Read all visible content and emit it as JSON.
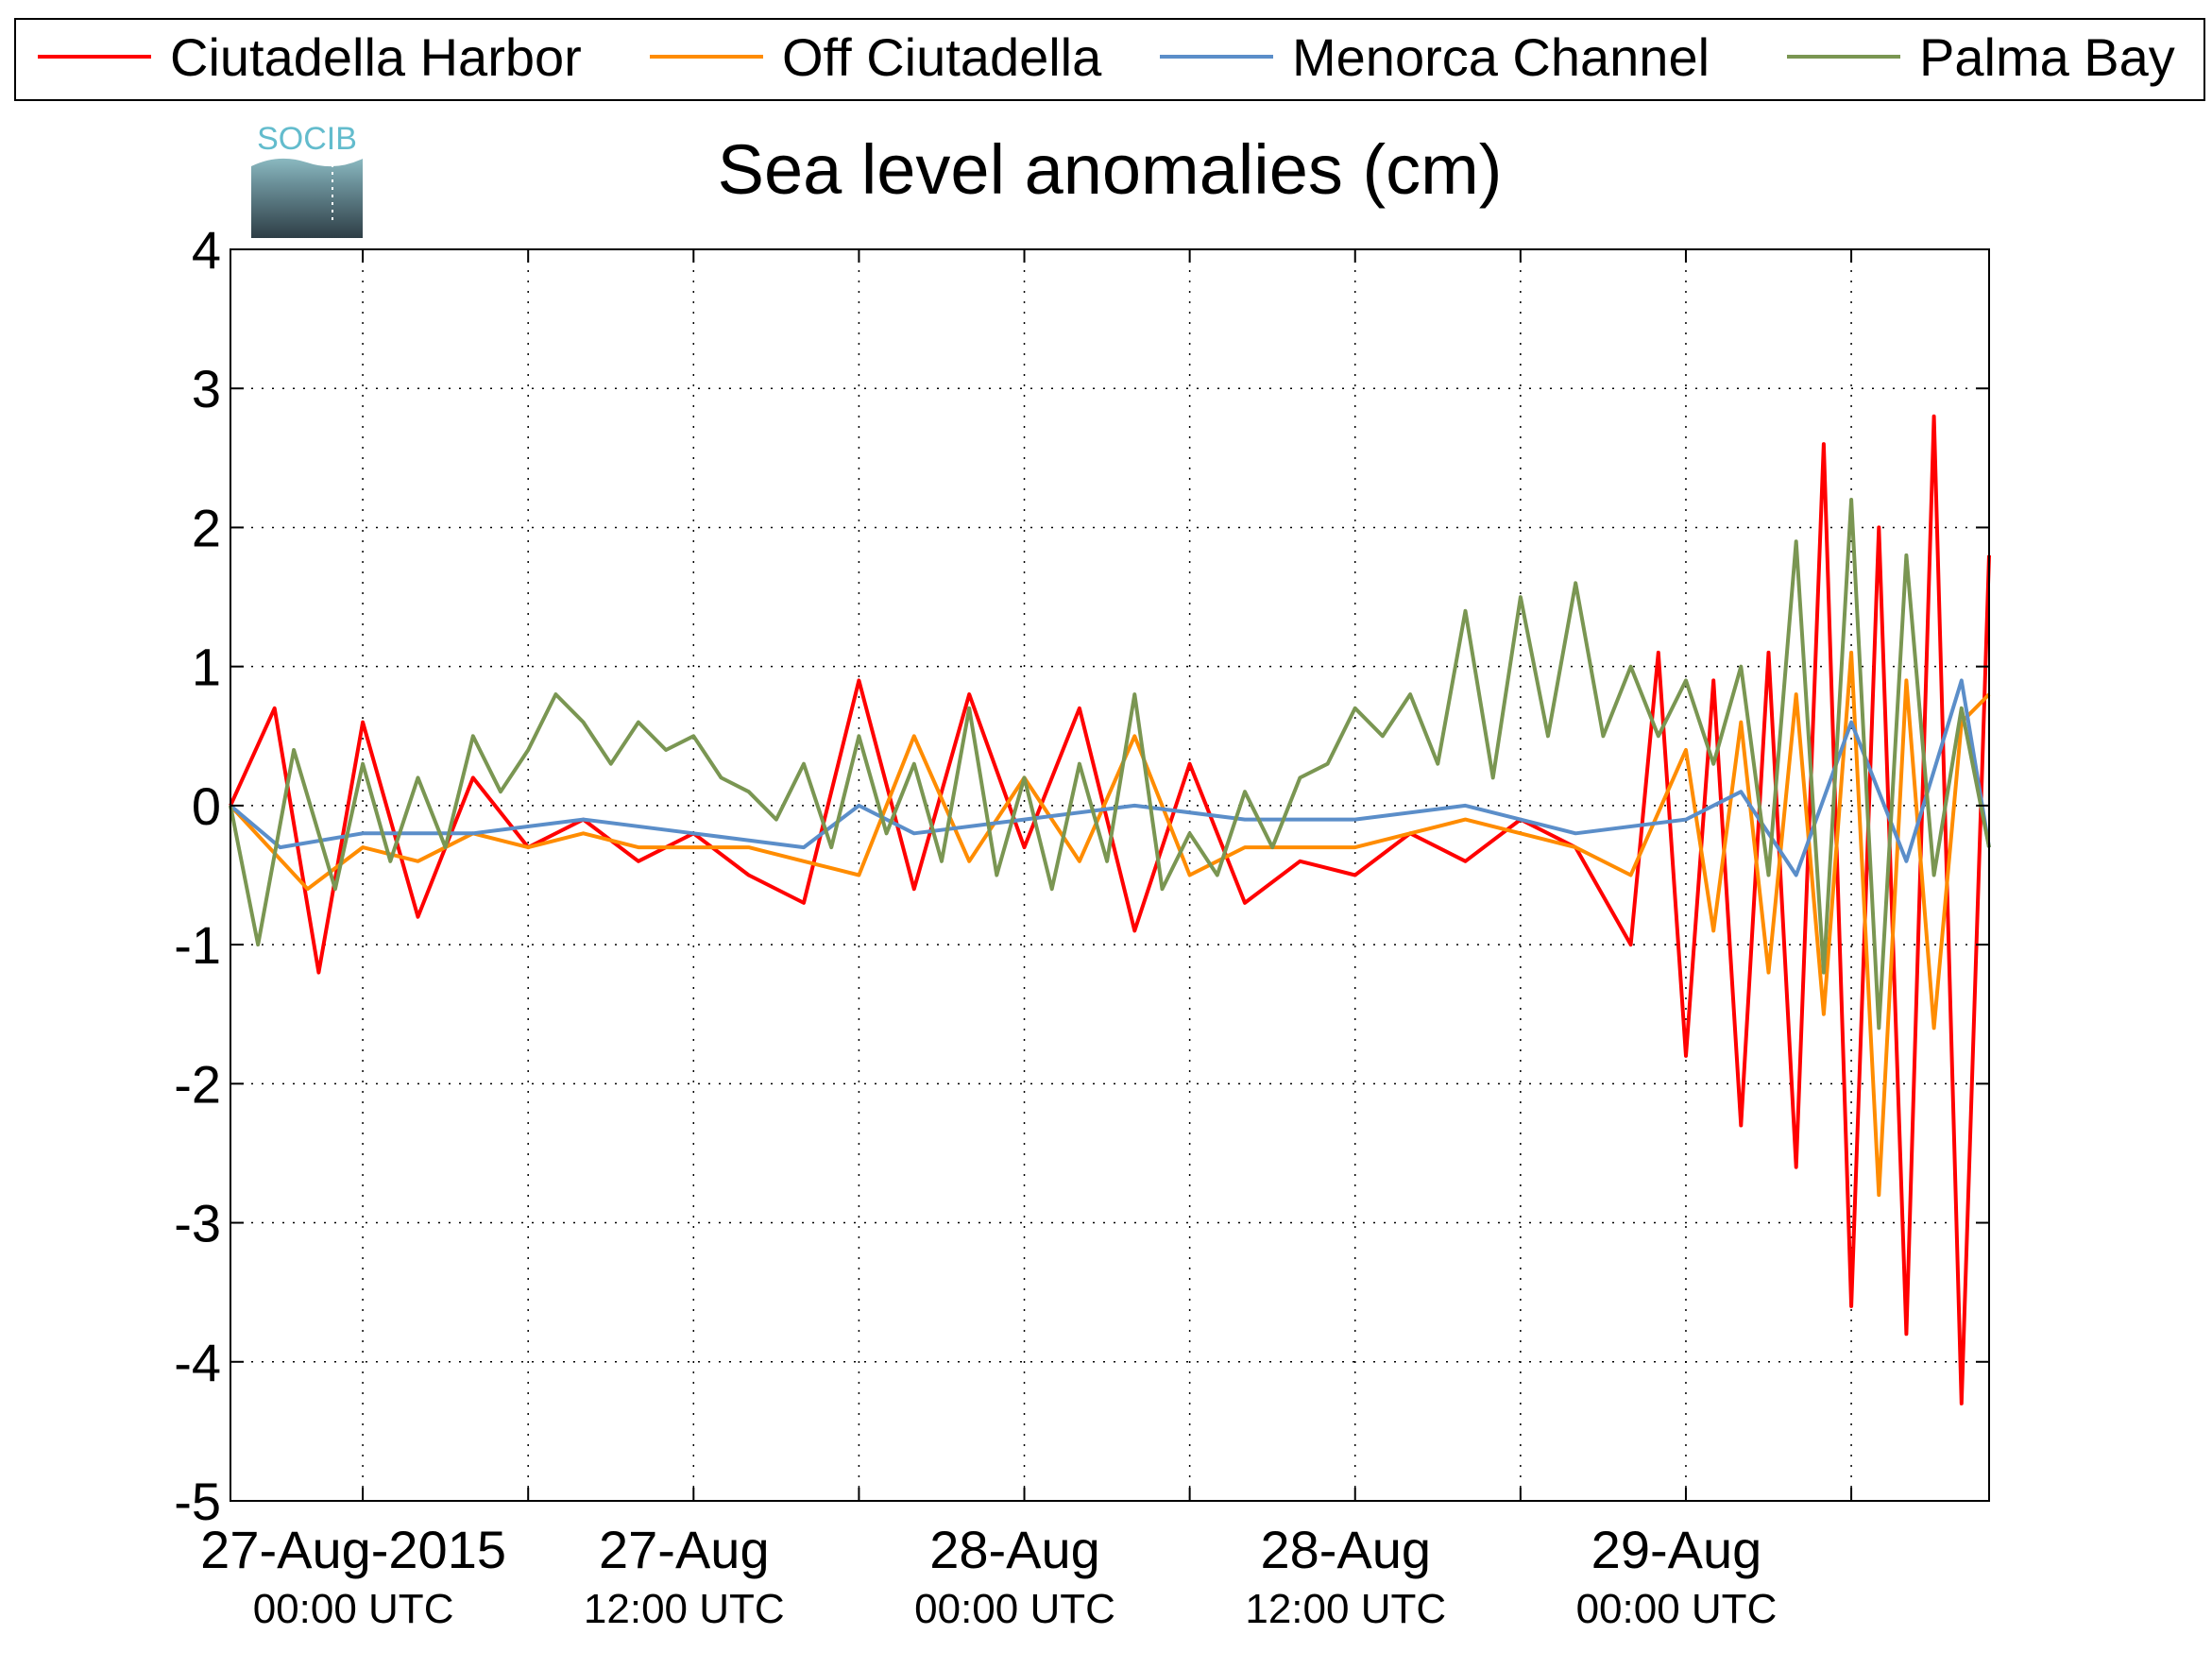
{
  "chart_data": {
    "type": "line",
    "title": "Sea level anomalies (cm)",
    "logo_text": "SOCIB",
    "ylim": [
      -5,
      4
    ],
    "xlim_hours": [
      -4.8,
      59
    ],
    "grid": true,
    "legend_position": "top",
    "y_ticks": [
      "4",
      "3",
      "2",
      "1",
      "0",
      "-1",
      "-2",
      "-3",
      "-4",
      "-5"
    ],
    "x_major_ticks": [
      {
        "date": "27-Aug-2015",
        "time": "00:00 UTC"
      },
      {
        "date": "27-Aug",
        "time": "12:00 UTC"
      },
      {
        "date": "28-Aug",
        "time": "00:00 UTC"
      },
      {
        "date": "28-Aug",
        "time": "12:00 UTC"
      },
      {
        "date": "29-Aug",
        "time": "00:00 UTC"
      }
    ],
    "series": [
      {
        "name": "Ciutadella Harbor",
        "color": "#ff0000",
        "x": [
          -4.8,
          -3.2,
          -1.6,
          0,
          2,
          4,
          6,
          8,
          10,
          12,
          14,
          16,
          18,
          20,
          22,
          24,
          26,
          28,
          30,
          32,
          34,
          36,
          38,
          40,
          42,
          44,
          46,
          47,
          48,
          49,
          50,
          51,
          52,
          53,
          54,
          55,
          56,
          57,
          58,
          59
        ],
        "y": [
          0,
          0.7,
          -1.2,
          0.6,
          -0.8,
          0.2,
          -0.3,
          -0.1,
          -0.4,
          -0.2,
          -0.5,
          -0.7,
          0.9,
          -0.6,
          0.8,
          -0.3,
          0.7,
          -0.9,
          0.3,
          -0.7,
          -0.4,
          -0.5,
          -0.2,
          -0.4,
          -0.1,
          -0.3,
          -1.0,
          1.1,
          -1.8,
          0.9,
          -2.3,
          1.1,
          -2.6,
          2.6,
          -3.6,
          2.0,
          -3.8,
          2.8,
          -4.3,
          1.8
        ]
      },
      {
        "name": "Off Ciutadella",
        "color": "#ff8c00",
        "x": [
          -4.8,
          -2,
          0,
          2,
          4,
          6,
          8,
          10,
          12,
          14,
          16,
          18,
          20,
          22,
          24,
          26,
          28,
          30,
          32,
          34,
          36,
          38,
          40,
          42,
          44,
          46,
          48,
          49,
          50,
          51,
          52,
          53,
          54,
          55,
          56,
          57,
          58,
          59
        ],
        "y": [
          0,
          -0.6,
          -0.3,
          -0.4,
          -0.2,
          -0.3,
          -0.2,
          -0.3,
          -0.3,
          -0.3,
          -0.4,
          -0.5,
          0.5,
          -0.4,
          0.2,
          -0.4,
          0.5,
          -0.5,
          -0.3,
          -0.3,
          -0.3,
          -0.2,
          -0.1,
          -0.2,
          -0.3,
          -0.5,
          0.4,
          -0.9,
          0.6,
          -1.2,
          0.8,
          -1.5,
          1.1,
          -2.8,
          0.9,
          -1.6,
          0.6,
          0.8
        ]
      },
      {
        "name": "Menorca Channel",
        "color": "#5b8ec9",
        "x": [
          -4.8,
          -3,
          0,
          4,
          8,
          12,
          16,
          18,
          20,
          24,
          28,
          32,
          36,
          40,
          44,
          48,
          50,
          52,
          54,
          56,
          58,
          59
        ],
        "y": [
          0,
          -0.3,
          -0.2,
          -0.2,
          -0.1,
          -0.2,
          -0.3,
          0.0,
          -0.2,
          -0.1,
          0.0,
          -0.1,
          -0.1,
          0.0,
          -0.2,
          -0.1,
          0.1,
          -0.5,
          0.6,
          -0.4,
          0.9,
          -0.3
        ]
      },
      {
        "name": "Palma Bay",
        "color": "#7a9652",
        "x": [
          -4.8,
          -3.8,
          -2.5,
          -1,
          0,
          1,
          2,
          3,
          4,
          5,
          6,
          7,
          8,
          9,
          10,
          11,
          12,
          13,
          14,
          15,
          16,
          17,
          18,
          19,
          20,
          21,
          22,
          23,
          24,
          25,
          26,
          27,
          28,
          29,
          30,
          31,
          32,
          33,
          34,
          35,
          36,
          37,
          38,
          39,
          40,
          41,
          42,
          43,
          44,
          45,
          46,
          47,
          48,
          49,
          50,
          51,
          52,
          53,
          54,
          55,
          56,
          57,
          58,
          59
        ],
        "y": [
          0,
          -1.0,
          0.4,
          -0.6,
          0.3,
          -0.4,
          0.2,
          -0.3,
          0.5,
          0.1,
          0.4,
          0.8,
          0.6,
          0.3,
          0.6,
          0.4,
          0.5,
          0.2,
          0.1,
          -0.1,
          0.3,
          -0.3,
          0.5,
          -0.2,
          0.3,
          -0.4,
          0.7,
          -0.5,
          0.2,
          -0.6,
          0.3,
          -0.4,
          0.8,
          -0.6,
          -0.2,
          -0.5,
          0.1,
          -0.3,
          0.2,
          0.3,
          0.7,
          0.5,
          0.8,
          0.3,
          1.4,
          0.2,
          1.5,
          0.5,
          1.6,
          0.5,
          1.0,
          0.5,
          0.9,
          0.3,
          1.0,
          -0.5,
          1.9,
          -1.2,
          2.2,
          -1.6,
          1.8,
          -0.5,
          0.7,
          -0.3
        ]
      }
    ]
  }
}
